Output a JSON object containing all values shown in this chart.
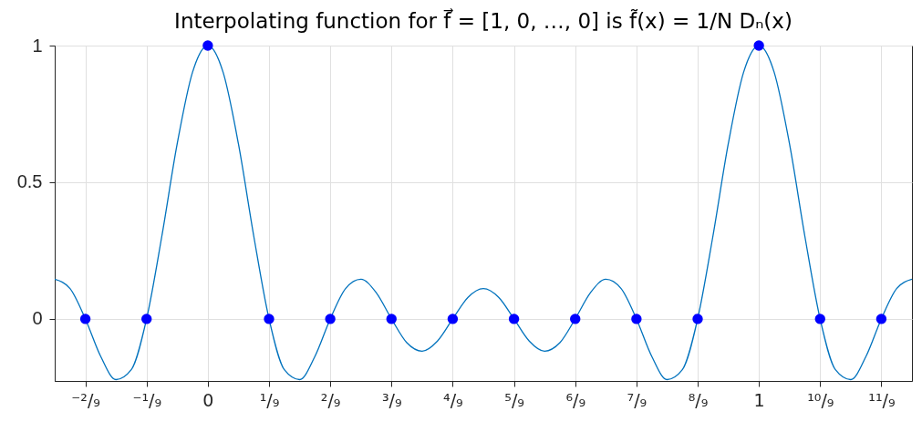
{
  "chart_data": {
    "type": "line",
    "title": "Interpolating function for f⃗ = [1, 0, …, 0] is f̃(x) = 1/N Dₙ(x)",
    "series": [
      {
        "color": "#0072bd",
        "x": [
          -0.2778,
          -0.25,
          -0.2222,
          -0.1944,
          -0.1667,
          -0.1389,
          -0.1111,
          -0.0833,
          -0.0556,
          -0.0278,
          0,
          0.0278,
          0.0556,
          0.0833,
          0.1111,
          0.1389,
          0.1667,
          0.1944,
          0.2222,
          0.25,
          0.2778,
          0.3056,
          0.3333,
          0.3611,
          0.3889,
          0.4167,
          0.4444,
          0.4722,
          0.5,
          0.5278,
          0.5556,
          0.5833,
          0.6111,
          0.6389,
          0.6667,
          0.6944,
          0.7222,
          0.75,
          0.7778,
          0.8056,
          0.8333,
          0.8611,
          0.8889,
          0.9167,
          0.9444,
          0.9722,
          1,
          1.0278,
          1.0556,
          1.0833,
          1.1111,
          1.1389,
          1.1667,
          1.1944,
          1.2222,
          1.25,
          1.2778
        ],
        "values": [
          0.145,
          0.111,
          0,
          -0.137,
          -0.222,
          -0.186,
          0,
          0.304,
          0.64,
          0.902,
          1,
          0.902,
          0.64,
          0.304,
          0,
          -0.186,
          -0.222,
          -0.137,
          0,
          0.111,
          0.145,
          0.096,
          0,
          -0.087,
          -0.118,
          -0.081,
          0,
          0.079,
          0.111,
          0.079,
          0,
          -0.081,
          -0.118,
          -0.087,
          0,
          0.096,
          0.145,
          0.111,
          0,
          -0.137,
          -0.222,
          -0.186,
          0,
          0.304,
          0.64,
          0.902,
          1,
          0.902,
          0.64,
          0.304,
          0,
          -0.186,
          -0.222,
          -0.137,
          0,
          0.111,
          0.145
        ]
      },
      {
        "type": "scatter",
        "color": "#0000ff",
        "marker": "circle",
        "x": [
          -0.2222,
          -0.1111,
          0,
          0.1111,
          0.2222,
          0.3333,
          0.4444,
          0.5556,
          0.6667,
          0.7778,
          0.8889,
          1,
          1.1111,
          1.2222
        ],
        "values": [
          0,
          0,
          1,
          0,
          0,
          0,
          0,
          0,
          0,
          0,
          0,
          1,
          0,
          0
        ]
      }
    ],
    "xlim": [
      -0.2778,
      1.2778
    ],
    "ylim": [
      -0.227,
      1
    ],
    "xticks": [
      {
        "value": -0.2222,
        "label": "⁻²/₉"
      },
      {
        "value": -0.1111,
        "label": "⁻¹/₉"
      },
      0,
      {
        "value": 0.1111,
        "label": "¹/₉"
      },
      {
        "value": 0.2222,
        "label": "²/₉"
      },
      {
        "value": 0.3333,
        "label": "³/₉"
      },
      {
        "value": 0.4444,
        "label": "⁴/₉"
      },
      {
        "value": 0.5556,
        "label": "⁵/₉"
      },
      {
        "value": 0.6667,
        "label": "⁶/₉"
      },
      {
        "value": 0.7778,
        "label": "⁷/₉"
      },
      {
        "value": 0.8889,
        "label": "⁸/₉"
      },
      1,
      {
        "value": 1.1111,
        "label": "¹⁰/₉"
      },
      {
        "value": 1.2222,
        "label": "¹¹/₉"
      }
    ],
    "yticks": [
      0,
      0.5,
      1
    ],
    "grid": true
  }
}
